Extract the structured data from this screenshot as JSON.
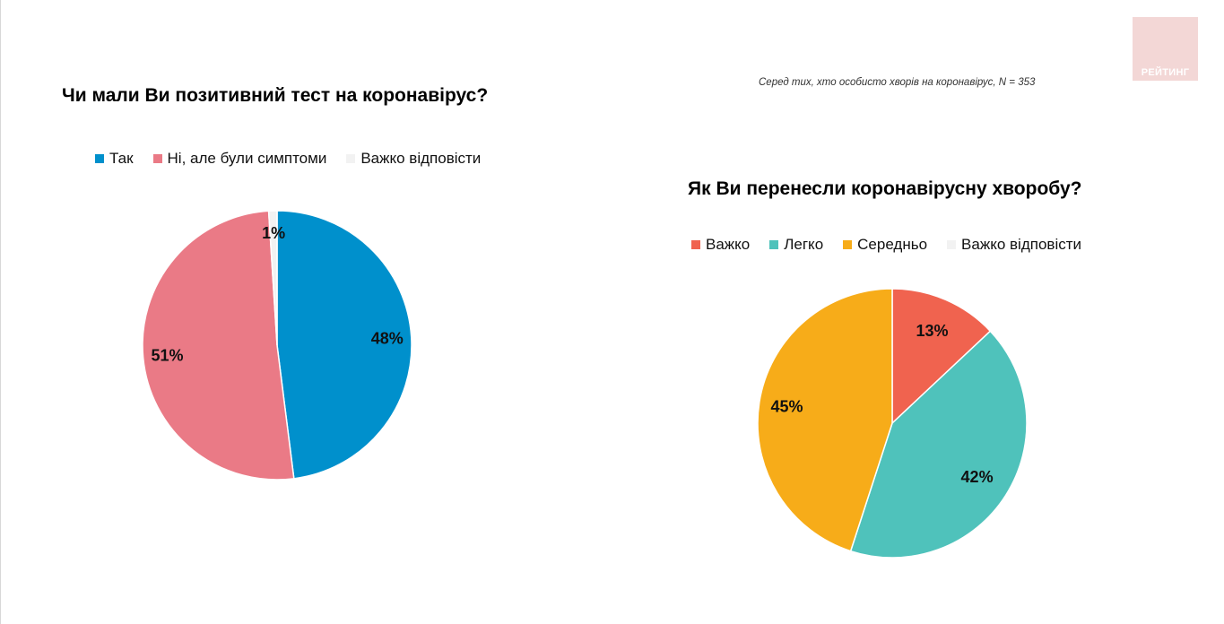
{
  "logo": {
    "label": "РЕЙТИНГ"
  },
  "note": "Серед тих, хто особисто хворів на коронавірус, N = 353",
  "chart_data": [
    {
      "type": "pie",
      "title": "Чи мали Ви позитивний тест на коронавірус?",
      "legend_placement": "top",
      "slices": [
        {
          "label": "Так",
          "value": 48,
          "display": "48%",
          "color": "#0090cc"
        },
        {
          "label": "Ні, але були симптоми",
          "value": 51,
          "display": "51%",
          "color": "#ea7a86"
        },
        {
          "label": "Важко відповісти",
          "value": 1,
          "display": "1%",
          "color": "#f2f2f2"
        }
      ]
    },
    {
      "type": "pie",
      "title": "Як Ви перенесли коронавірусну хворобу?",
      "legend_placement": "top",
      "slices": [
        {
          "label": "Важко",
          "value": 13,
          "display": "13%",
          "color": "#f0634f"
        },
        {
          "label": "Легко",
          "value": 42,
          "display": "42%",
          "color": "#4fc2bb"
        },
        {
          "label": "Середньо",
          "value": 45,
          "display": "45%",
          "color": "#f7ac19"
        },
        {
          "label": "Важко відповісти",
          "value": 0,
          "display": "",
          "color": "#f2f2f2"
        }
      ]
    }
  ]
}
